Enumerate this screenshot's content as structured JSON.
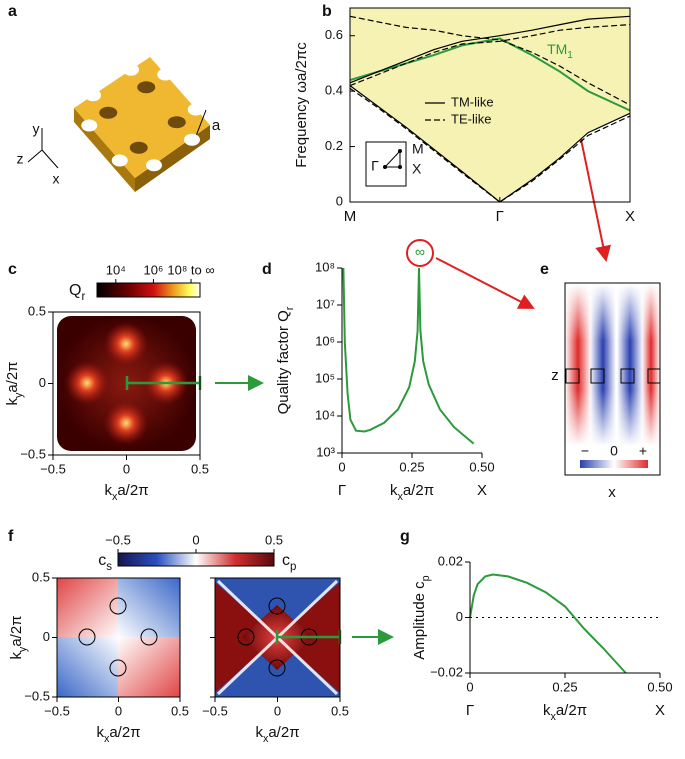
{
  "chart_data": [
    {
      "type": "diagram",
      "panel": "a",
      "axes_labels": [
        "y",
        "z",
        "x"
      ],
      "lattice_label": "a"
    },
    {
      "type": "line",
      "panel": "b",
      "y_label": "Frequency ωa/2πc",
      "xlim": [
        0,
        1
      ],
      "xticks": [
        {
          "value": 0,
          "label": "M"
        },
        {
          "value": 0.535,
          "label": "Γ"
        },
        {
          "value": 1,
          "label": "X"
        }
      ],
      "ylim": [
        0,
        0.7
      ],
      "yticks": [
        0,
        0.2,
        0.4,
        0.6
      ],
      "light_cone_color": "#f5f2b4",
      "annotation": [
        "TM",
        "1"
      ],
      "bz_labels": [
        "Γ",
        "M",
        "X"
      ],
      "x": [
        0,
        0.1,
        0.2,
        0.3,
        0.4,
        0.535,
        0.65,
        0.75,
        0.85,
        1
      ],
      "series": [
        {
          "color": "#2a9a3a",
          "style": "solid",
          "values": [
            0.44,
            0.47,
            0.5,
            0.53,
            0.565,
            0.59,
            0.53,
            0.47,
            0.4,
            0.33
          ]
        },
        {
          "name": "TM-like",
          "color": "#000000",
          "style": "solid",
          "values": [
            0.43,
            0.47,
            0.51,
            0.55,
            0.58,
            0.6,
            0.62,
            0.64,
            0.66,
            0.67
          ]
        },
        {
          "name": "TE-like",
          "color": "#000000",
          "style": "dashed",
          "values": [
            0.42,
            0.46,
            0.5,
            0.54,
            0.57,
            0.58,
            0.6,
            0.62,
            0.63,
            0.64
          ]
        },
        {
          "color": "#000000",
          "style": "dashed",
          "values": [
            0.67,
            0.65,
            0.63,
            0.62,
            0.6,
            0.585,
            0.54,
            0.49,
            0.43,
            0.35
          ]
        },
        {
          "color": "#000000",
          "style": "dashed",
          "values": [
            0.41,
            0.34,
            0.265,
            0.185,
            0.105,
            0,
            0.075,
            0.155,
            0.24,
            0.31
          ]
        },
        {
          "color": "#000000",
          "style": "solid",
          "values": [
            0.42,
            0.345,
            0.27,
            0.19,
            0.11,
            0,
            0.08,
            0.16,
            0.25,
            0.32
          ]
        }
      ]
    },
    {
      "type": "heatmap",
      "panel": "c",
      "colorbar_label": [
        "Q",
        "r"
      ],
      "log_color": true,
      "clim": [
        1000,
        300000000
      ],
      "cticks": [
        {
          "value": 10000,
          "label": "10⁴"
        },
        {
          "value": 1000000,
          "label": "10⁶"
        },
        {
          "value": 100000000,
          "label": "10⁸ to ∞"
        }
      ],
      "xlim": [
        -0.5,
        0.5
      ],
      "ylim": [
        -0.5,
        0.5
      ],
      "xticks": [
        {
          "value": -0.5,
          "label": "−0.5"
        },
        0,
        0.5
      ],
      "yticks": [
        {
          "value": -0.5,
          "label": "−0.5"
        },
        0,
        0.5
      ],
      "x_label": [
        "k",
        "x",
        "a/2π"
      ],
      "y_label": [
        "k",
        "y",
        "a/2π"
      ]
    },
    {
      "type": "line",
      "panel": "d",
      "log_y": true,
      "ylim": [
        1000,
        100000000
      ],
      "yticks": [
        {
          "value": 1000,
          "label": "10³"
        },
        {
          "value": 10000,
          "label": "10⁴"
        },
        {
          "value": 100000,
          "label": "10⁵"
        },
        {
          "value": 1000000,
          "label": "10⁶"
        },
        {
          "value": 10000000,
          "label": "10⁷"
        },
        {
          "value": 100000000,
          "label": "10⁸"
        }
      ],
      "xlim": [
        0,
        0.5
      ],
      "xticks": [
        0,
        0.25,
        {
          "value": 0.5,
          "label": "0.50"
        }
      ],
      "x_point_labels": [
        "Γ",
        "X"
      ],
      "x_label": [
        "k",
        "x",
        "a/2π"
      ],
      "y_label": [
        "Quality factor Q",
        "r"
      ],
      "annotation": "∞",
      "color": "#2a9a3a",
      "x": [
        0.005,
        0.01,
        0.02,
        0.03,
        0.05,
        0.08,
        0.1,
        0.15,
        0.2,
        0.24,
        0.26,
        0.27,
        0.275,
        0.28,
        0.29,
        0.31,
        0.35,
        0.4,
        0.47
      ],
      "values": [
        100000000,
        1000000,
        40000,
        8000,
        4000,
        3800,
        4200,
        6500,
        15000,
        60000,
        300000,
        2000000,
        100000000,
        2000000,
        300000,
        70000,
        15000,
        5000,
        1800
      ]
    },
    {
      "type": "field_map",
      "panel": "e",
      "z_label": "z",
      "x_label": "x",
      "colorbar_ticks": [
        "−",
        "0",
        "+"
      ]
    },
    {
      "type": "heatmap",
      "panel": "f",
      "clim": [
        -0.5,
        0.5
      ],
      "cticks": [
        {
          "value": -0.5,
          "label": "−0.5"
        },
        0,
        0.5
      ],
      "colorbar_labels": [
        [
          "c",
          "s"
        ],
        [
          "c",
          "p"
        ]
      ],
      "xlim": [
        -0.5,
        0.5
      ],
      "ylim": [
        -0.5,
        0.5
      ],
      "xticks": [
        {
          "value": -0.5,
          "label": "−0.5"
        },
        0,
        0.5
      ],
      "yticks": [
        {
          "value": -0.5,
          "label": "−0.5"
        },
        0,
        0.5
      ],
      "x_label": [
        "k",
        "x",
        "a/2π"
      ],
      "y_label": [
        "k",
        "y",
        "a/2π"
      ]
    },
    {
      "type": "line",
      "panel": "g",
      "ylim": [
        -0.02,
        0.02
      ],
      "yticks": [
        {
          "value": -0.02,
          "label": "−0.02"
        },
        0,
        0.02
      ],
      "xlim": [
        0,
        0.5
      ],
      "xticks": [
        0,
        0.25,
        {
          "value": 0.5,
          "label": "0.50"
        }
      ],
      "x_point_labels": [
        "Γ",
        "X"
      ],
      "x_label": [
        "k",
        "x",
        "a/2π"
      ],
      "y_label": [
        "Amplitude c",
        "p"
      ],
      "zero_line": true,
      "color": "#2a9a3a",
      "x": [
        0,
        0.01,
        0.02,
        0.04,
        0.06,
        0.1,
        0.15,
        0.2,
        0.25,
        0.275,
        0.3,
        0.35,
        0.41
      ],
      "values": [
        0,
        0.008,
        0.012,
        0.0148,
        0.0155,
        0.0148,
        0.0125,
        0.009,
        0.004,
        0,
        -0.004,
        -0.011,
        -0.02
      ]
    }
  ]
}
